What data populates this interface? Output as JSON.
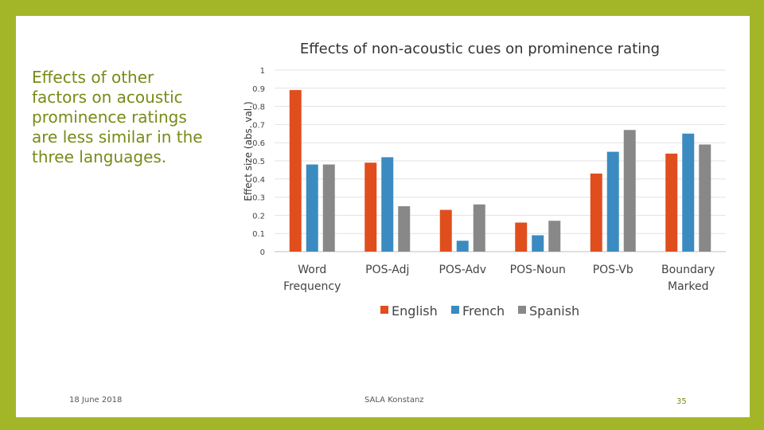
{
  "side_text": "Effects of other factors on acoustic prominence ratings are less similar in the three languages.",
  "footer": {
    "date": "18 June 2018",
    "center": "SALA Konstanz",
    "page": "35"
  },
  "colors": {
    "English": "#e04e1e",
    "French": "#3b8bc0",
    "Spanish": "#888888",
    "background": "#a3b628",
    "text_accent": "#7a8a16"
  },
  "chart_data": {
    "type": "bar",
    "title": "Effects of non-acoustic cues on prominence rating",
    "ylabel": "Effect size (abs. val.)",
    "xlabel": "",
    "ylim": [
      0,
      1
    ],
    "yticks": [
      "0",
      "0.1",
      "0.2",
      "0.3",
      "0.4",
      "0.5",
      "0.6",
      "0.7",
      "0.8",
      "0.9",
      "1"
    ],
    "grid": true,
    "legend": "bottom",
    "categories": [
      [
        "Word",
        "Frequency"
      ],
      [
        "POS-Adj"
      ],
      [
        "POS-Adv"
      ],
      [
        "POS-Noun"
      ],
      [
        "POS-Vb"
      ],
      [
        "Boundary",
        "Marked"
      ]
    ],
    "series": [
      {
        "name": "English",
        "values": [
          0.89,
          0.49,
          0.23,
          0.16,
          0.43,
          0.54
        ]
      },
      {
        "name": "French",
        "values": [
          0.48,
          0.52,
          0.06,
          0.09,
          0.55,
          0.65
        ]
      },
      {
        "name": "Spanish",
        "values": [
          0.48,
          0.25,
          0.26,
          0.17,
          0.67,
          0.59
        ]
      }
    ]
  }
}
